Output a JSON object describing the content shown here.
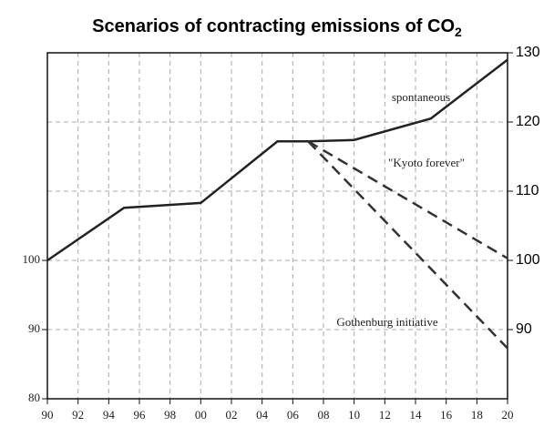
{
  "chart_data": {
    "type": "line",
    "title": "Scenarios of contracting emissions of CO",
    "title_subscript": "2",
    "xlim": [
      1990,
      2020
    ],
    "xticks": [
      {
        "value": 1990,
        "label": "90"
      },
      {
        "value": 1992,
        "label": "92"
      },
      {
        "value": 1994,
        "label": "94"
      },
      {
        "value": 1996,
        "label": "96"
      },
      {
        "value": 1998,
        "label": "98"
      },
      {
        "value": 2000,
        "label": "00"
      },
      {
        "value": 2002,
        "label": "02"
      },
      {
        "value": 2004,
        "label": "04"
      },
      {
        "value": 2006,
        "label": "06"
      },
      {
        "value": 2008,
        "label": "08"
      },
      {
        "value": 2010,
        "label": "10"
      },
      {
        "value": 2012,
        "label": "12"
      },
      {
        "value": 2014,
        "label": "14"
      },
      {
        "value": 2016,
        "label": "16"
      },
      {
        "value": 2018,
        "label": "18"
      },
      {
        "value": 2020,
        "label": "20"
      }
    ],
    "ylim": [
      80,
      130
    ],
    "yticks": [
      80,
      90,
      100
    ],
    "y2lim": [
      80,
      130
    ],
    "y2ticks": [
      90,
      100,
      110,
      120,
      130
    ],
    "grid": true,
    "series": [
      {
        "name": "spontaneous",
        "color": "#222222",
        "dashed": false,
        "x": [
          1990,
          1995,
          2000,
          2005,
          2007,
          2010,
          2015,
          2020
        ],
        "values": [
          100,
          107.6,
          108.3,
          117.2,
          117.2,
          117.4,
          120.5,
          129
        ]
      },
      {
        "name": "\"Kyoto forever\"",
        "color": "#333333",
        "dashed": true,
        "x": [
          2007,
          2020
        ],
        "values": [
          117.2,
          100.3
        ]
      },
      {
        "name": "Gothenburg initiative",
        "color": "#333333",
        "dashed": true,
        "x": [
          2007,
          2020
        ],
        "values": [
          117.2,
          87.3
        ]
      }
    ]
  }
}
